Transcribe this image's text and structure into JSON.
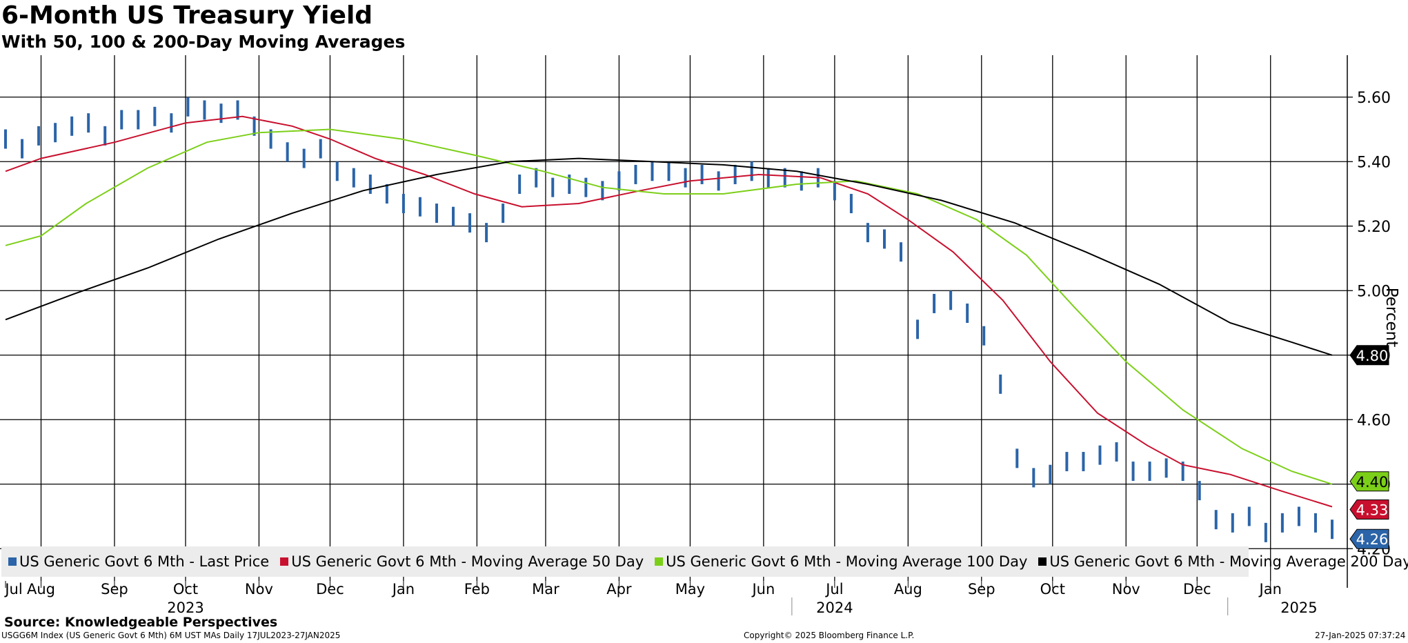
{
  "header": {
    "title": "6-Month US Treasury Yield",
    "subtitle": "With 50, 100 & 200-Day Moving Averages"
  },
  "footer": {
    "source": "Source: Knowledgeable Perspectives",
    "index_info": "USGG6M Index (US Generic Govt 6 Mth) 6M UST MAs  Daily 17JUL2023-27JAN2025",
    "copyright": "Copyright© 2025 Bloomberg Finance L.P.",
    "timestamp": "27-Jan-2025 07:37:24"
  },
  "legend": [
    {
      "label": "US Generic Govt 6 Mth - Last Price",
      "color": "#2b64a8"
    },
    {
      "label": "US Generic Govt 6 Mth - Moving Average 50 Day",
      "color": "#c8102e"
    },
    {
      "label": "US Generic Govt 6 Mth - Moving Average 100 Day",
      "color": "#7ccf18"
    },
    {
      "label": "US Generic Govt 6 Mth - Moving Average 200 Day",
      "color": "#000000"
    }
  ],
  "chart_data": {
    "type": "line",
    "title": "6-Month US Treasury Yield",
    "subtitle": "With 50, 100 & 200-Day Moving Averages",
    "ylabel": "Percent",
    "ylim": [
      4.1,
      5.73
    ],
    "yticks": [
      "5.60",
      "5.40",
      "5.20",
      "5.00",
      "4.80",
      "4.60",
      "4.40",
      "4.20"
    ],
    "xlim": [
      "2023-07-17",
      "2025-01-27"
    ],
    "month_ticks": [
      {
        "label": "Jul",
        "date": "2023-07-17"
      },
      {
        "label": "Aug",
        "date": "2023-08-01"
      },
      {
        "label": "Sep",
        "date": "2023-09-01"
      },
      {
        "label": "Oct",
        "date": "2023-10-01"
      },
      {
        "label": "Nov",
        "date": "2023-11-01"
      },
      {
        "label": "Dec",
        "date": "2023-12-01"
      },
      {
        "label": "Jan",
        "date": "2024-01-01"
      },
      {
        "label": "Feb",
        "date": "2024-02-01"
      },
      {
        "label": "Mar",
        "date": "2024-03-01"
      },
      {
        "label": "Apr",
        "date": "2024-04-01"
      },
      {
        "label": "May",
        "date": "2024-05-01"
      },
      {
        "label": "Jun",
        "date": "2024-06-01"
      },
      {
        "label": "Jul",
        "date": "2024-07-01"
      },
      {
        "label": "Aug",
        "date": "2024-08-01"
      },
      {
        "label": "Sep",
        "date": "2024-09-01"
      },
      {
        "label": "Oct",
        "date": "2024-10-01"
      },
      {
        "label": "Nov",
        "date": "2024-11-01"
      },
      {
        "label": "Dec",
        "date": "2024-12-01"
      },
      {
        "label": "Jan",
        "date": "2025-01-01"
      }
    ],
    "year_labels": [
      {
        "label": "2023",
        "date": "2023-10-01"
      },
      {
        "label": "2024",
        "date": "2024-07-01"
      },
      {
        "label": "2025",
        "date": "2025-01-13"
      }
    ],
    "grid": true,
    "legend_position": "bottom",
    "series": [
      {
        "name": "US Generic Govt 6 Mth - Last Price",
        "style": "bars",
        "color": "#2b64a8",
        "last_value": "4.26",
        "points": [
          [
            "2023-07-17",
            5.47
          ],
          [
            "2023-07-24",
            5.44
          ],
          [
            "2023-07-31",
            5.48
          ],
          [
            "2023-08-07",
            5.49
          ],
          [
            "2023-08-14",
            5.51
          ],
          [
            "2023-08-21",
            5.52
          ],
          [
            "2023-08-28",
            5.48
          ],
          [
            "2023-09-04",
            5.53
          ],
          [
            "2023-09-11",
            5.53
          ],
          [
            "2023-09-18",
            5.54
          ],
          [
            "2023-09-25",
            5.52
          ],
          [
            "2023-10-02",
            5.57
          ],
          [
            "2023-10-09",
            5.56
          ],
          [
            "2023-10-16",
            5.55
          ],
          [
            "2023-10-23",
            5.56
          ],
          [
            "2023-10-30",
            5.51
          ],
          [
            "2023-11-06",
            5.47
          ],
          [
            "2023-11-13",
            5.43
          ],
          [
            "2023-11-20",
            5.41
          ],
          [
            "2023-11-27",
            5.44
          ],
          [
            "2023-12-04",
            5.37
          ],
          [
            "2023-12-11",
            5.35
          ],
          [
            "2023-12-18",
            5.33
          ],
          [
            "2023-12-25",
            5.3
          ],
          [
            "2024-01-01",
            5.27
          ],
          [
            "2024-01-08",
            5.26
          ],
          [
            "2024-01-15",
            5.24
          ],
          [
            "2024-01-22",
            5.23
          ],
          [
            "2024-01-29",
            5.21
          ],
          [
            "2024-02-05",
            5.18
          ],
          [
            "2024-02-12",
            5.24
          ],
          [
            "2024-02-19",
            5.33
          ],
          [
            "2024-02-26",
            5.35
          ],
          [
            "2024-03-04",
            5.32
          ],
          [
            "2024-03-11",
            5.33
          ],
          [
            "2024-03-18",
            5.32
          ],
          [
            "2024-03-25",
            5.31
          ],
          [
            "2024-04-01",
            5.34
          ],
          [
            "2024-04-08",
            5.36
          ],
          [
            "2024-04-15",
            5.37
          ],
          [
            "2024-04-22",
            5.37
          ],
          [
            "2024-04-29",
            5.35
          ],
          [
            "2024-05-06",
            5.36
          ],
          [
            "2024-05-13",
            5.34
          ],
          [
            "2024-05-20",
            5.36
          ],
          [
            "2024-05-27",
            5.37
          ],
          [
            "2024-06-03",
            5.35
          ],
          [
            "2024-06-10",
            5.35
          ],
          [
            "2024-06-17",
            5.34
          ],
          [
            "2024-06-24",
            5.35
          ],
          [
            "2024-07-01",
            5.31
          ],
          [
            "2024-07-08",
            5.27
          ],
          [
            "2024-07-15",
            5.18
          ],
          [
            "2024-07-22",
            5.16
          ],
          [
            "2024-07-29",
            5.12
          ],
          [
            "2024-08-05",
            4.88
          ],
          [
            "2024-08-12",
            4.96
          ],
          [
            "2024-08-19",
            4.97
          ],
          [
            "2024-08-26",
            4.93
          ],
          [
            "2024-09-02",
            4.86
          ],
          [
            "2024-09-09",
            4.71
          ],
          [
            "2024-09-16",
            4.48
          ],
          [
            "2024-09-23",
            4.42
          ],
          [
            "2024-09-30",
            4.43
          ],
          [
            "2024-10-07",
            4.47
          ],
          [
            "2024-10-14",
            4.47
          ],
          [
            "2024-10-21",
            4.49
          ],
          [
            "2024-10-28",
            4.5
          ],
          [
            "2024-11-04",
            4.44
          ],
          [
            "2024-11-11",
            4.44
          ],
          [
            "2024-11-18",
            4.45
          ],
          [
            "2024-11-25",
            4.44
          ],
          [
            "2024-12-02",
            4.38
          ],
          [
            "2024-12-09",
            4.29
          ],
          [
            "2024-12-16",
            4.28
          ],
          [
            "2024-12-23",
            4.3
          ],
          [
            "2024-12-30",
            4.25
          ],
          [
            "2025-01-06",
            4.28
          ],
          [
            "2025-01-13",
            4.3
          ],
          [
            "2025-01-20",
            4.28
          ],
          [
            "2025-01-27",
            4.26
          ]
        ]
      },
      {
        "name": "US Generic Govt 6 Mth - Moving Average 50 Day",
        "style": "line",
        "color": "#c8102e",
        "last_value": "4.33",
        "points": [
          [
            "2023-07-17",
            5.37
          ],
          [
            "2023-08-01",
            5.41
          ],
          [
            "2023-09-01",
            5.46
          ],
          [
            "2023-10-01",
            5.52
          ],
          [
            "2023-10-25",
            5.54
          ],
          [
            "2023-11-15",
            5.51
          ],
          [
            "2023-12-01",
            5.47
          ],
          [
            "2023-12-20",
            5.41
          ],
          [
            "2024-01-10",
            5.36
          ],
          [
            "2024-01-31",
            5.3
          ],
          [
            "2024-02-20",
            5.26
          ],
          [
            "2024-03-15",
            5.27
          ],
          [
            "2024-04-10",
            5.31
          ],
          [
            "2024-05-01",
            5.34
          ],
          [
            "2024-05-30",
            5.36
          ],
          [
            "2024-06-25",
            5.35
          ],
          [
            "2024-07-15",
            5.3
          ],
          [
            "2024-08-01",
            5.22
          ],
          [
            "2024-08-20",
            5.12
          ],
          [
            "2024-09-10",
            4.97
          ],
          [
            "2024-09-30",
            4.78
          ],
          [
            "2024-10-20",
            4.62
          ],
          [
            "2024-11-10",
            4.52
          ],
          [
            "2024-11-25",
            4.46
          ],
          [
            "2024-12-15",
            4.43
          ],
          [
            "2025-01-05",
            4.38
          ],
          [
            "2025-01-27",
            4.33
          ]
        ]
      },
      {
        "name": "US Generic Govt 6 Mth - Moving Average 100 Day",
        "style": "line",
        "color": "#7ccf18",
        "last_value": "4.40",
        "points": [
          [
            "2023-07-17",
            5.14
          ],
          [
            "2023-08-01",
            5.17
          ],
          [
            "2023-08-20",
            5.27
          ],
          [
            "2023-09-15",
            5.38
          ],
          [
            "2023-10-10",
            5.46
          ],
          [
            "2023-11-01",
            5.49
          ],
          [
            "2023-12-01",
            5.5
          ],
          [
            "2023-12-31",
            5.47
          ],
          [
            "2024-01-31",
            5.42
          ],
          [
            "2024-02-29",
            5.37
          ],
          [
            "2024-03-25",
            5.32
          ],
          [
            "2024-04-20",
            5.3
          ],
          [
            "2024-05-15",
            5.3
          ],
          [
            "2024-06-15",
            5.33
          ],
          [
            "2024-07-10",
            5.34
          ],
          [
            "2024-08-05",
            5.3
          ],
          [
            "2024-08-30",
            5.22
          ],
          [
            "2024-09-20",
            5.11
          ],
          [
            "2024-10-10",
            4.95
          ],
          [
            "2024-11-01",
            4.78
          ],
          [
            "2024-11-25",
            4.63
          ],
          [
            "2024-12-20",
            4.51
          ],
          [
            "2025-01-10",
            4.44
          ],
          [
            "2025-01-27",
            4.4
          ]
        ]
      },
      {
        "name": "US Generic Govt 6 Mth - Moving Average 200 Day",
        "style": "line",
        "color": "#000000",
        "last_value": "4.80",
        "points": [
          [
            "2023-07-17",
            4.91
          ],
          [
            "2023-08-15",
            4.99
          ],
          [
            "2023-09-15",
            5.07
          ],
          [
            "2023-10-15",
            5.16
          ],
          [
            "2023-11-15",
            5.24
          ],
          [
            "2023-12-15",
            5.31
          ],
          [
            "2024-01-15",
            5.36
          ],
          [
            "2024-02-15",
            5.4
          ],
          [
            "2024-03-15",
            5.41
          ],
          [
            "2024-04-15",
            5.4
          ],
          [
            "2024-05-15",
            5.39
          ],
          [
            "2024-06-15",
            5.37
          ],
          [
            "2024-07-15",
            5.33
          ],
          [
            "2024-08-15",
            5.28
          ],
          [
            "2024-09-15",
            5.21
          ],
          [
            "2024-10-15",
            5.12
          ],
          [
            "2024-11-15",
            5.02
          ],
          [
            "2024-12-15",
            4.9
          ],
          [
            "2025-01-10",
            4.84
          ],
          [
            "2025-01-27",
            4.8
          ]
        ]
      }
    ]
  }
}
